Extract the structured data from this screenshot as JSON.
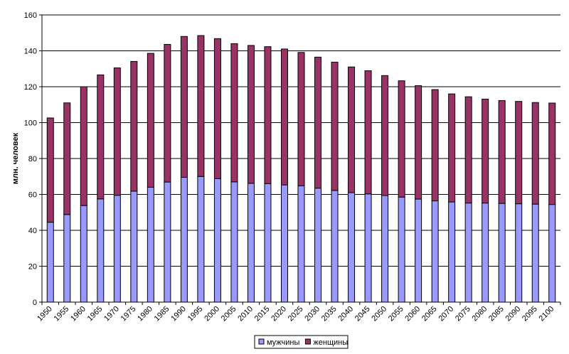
{
  "chart_data": {
    "type": "bar",
    "stacked": true,
    "title": "",
    "xlabel": "",
    "ylabel": "млн. человек",
    "ylim": [
      0,
      160
    ],
    "yticks": [
      0,
      20,
      40,
      60,
      80,
      100,
      120,
      140,
      160
    ],
    "grid": true,
    "legend_position": "bottom",
    "categories": [
      "1950",
      "1955",
      "1960",
      "1965",
      "1970",
      "1975",
      "1980",
      "1985",
      "1990",
      "1995",
      "2000",
      "2005",
      "2010",
      "2015",
      "2020",
      "2025",
      "2030",
      "2035",
      "2040",
      "2045",
      "2050",
      "2055",
      "2060",
      "2065",
      "2070",
      "2075",
      "2080",
      "2085",
      "2090",
      "2095",
      "2100"
    ],
    "series": [
      {
        "name": "мужчины",
        "color": "#9999ff",
        "values": [
          44.5,
          48.8,
          53.8,
          57.5,
          59.5,
          61.8,
          64.0,
          66.9,
          69.5,
          70.0,
          68.8,
          67.0,
          66.2,
          66.0,
          65.3,
          64.8,
          63.5,
          62.2,
          61.0,
          60.3,
          59.4,
          58.5,
          57.4,
          56.4,
          55.8,
          55.2,
          55.2,
          55.0,
          54.8,
          54.6,
          54.4
        ]
      },
      {
        "name": "женщины",
        "color": "#993366",
        "values": [
          58.1,
          62.2,
          66.2,
          69.1,
          71.0,
          72.3,
          74.6,
          76.7,
          78.5,
          78.5,
          78.0,
          77.0,
          76.8,
          76.3,
          75.7,
          74.3,
          73.0,
          71.5,
          70.0,
          68.6,
          66.8,
          64.8,
          63.2,
          62.0,
          60.2,
          59.2,
          57.9,
          57.3,
          57.0,
          56.6,
          56.5
        ]
      }
    ]
  }
}
